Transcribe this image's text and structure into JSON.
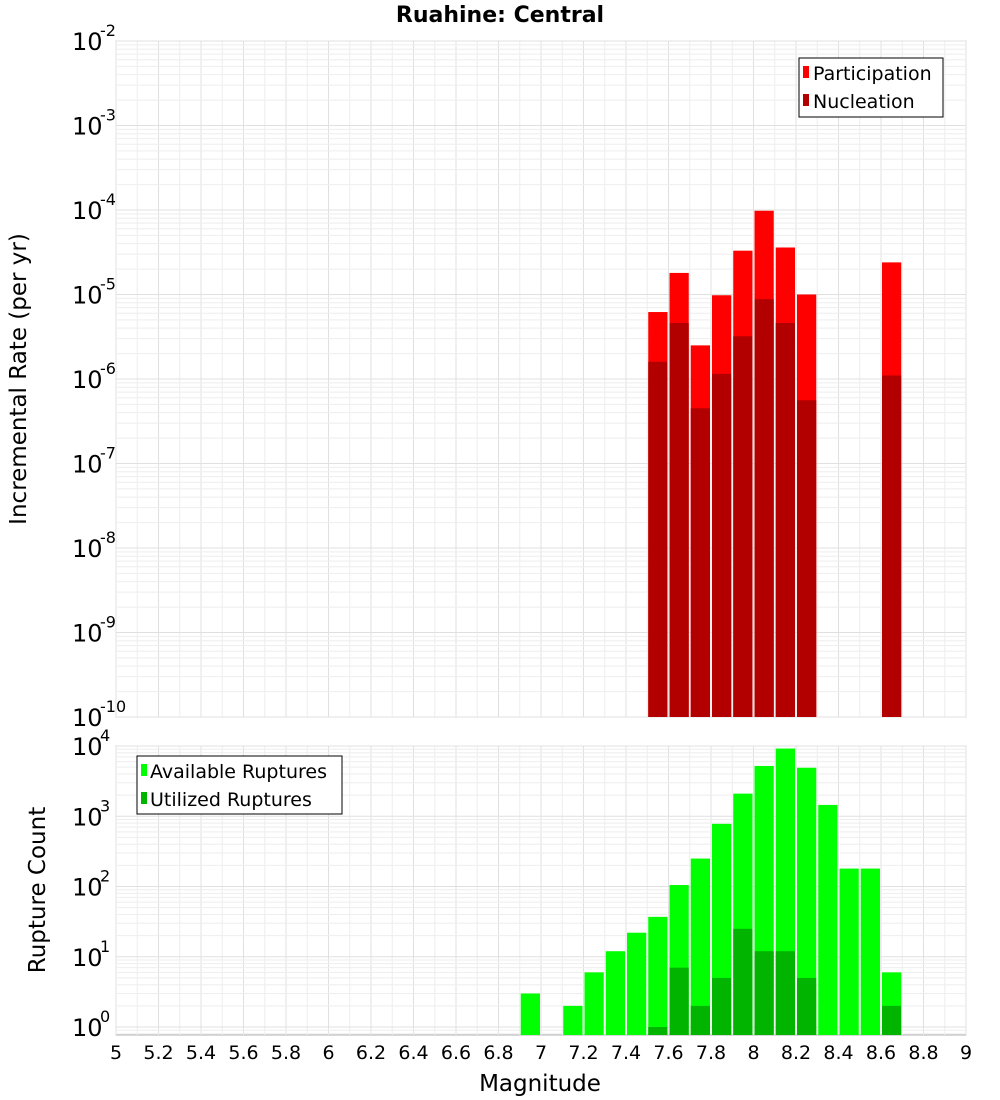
{
  "chart_data": [
    {
      "type": "bar",
      "title": "Ruahine: Central",
      "xlabel": "",
      "ylabel": "Incremental Rate (per yr)",
      "yscale": "log",
      "xlim": [
        5,
        9
      ],
      "ylim": [
        1e-10,
        0.01
      ],
      "ytick_exponents": [
        "-10",
        "-9",
        "-8",
        "-7",
        "-6",
        "-5",
        "-4",
        "-3",
        "-2"
      ],
      "ytick_base": "10",
      "legend": {
        "position": "top-right",
        "entries": [
          "Participation",
          "Nucleation"
        ]
      },
      "series": [
        {
          "name": "Participation",
          "color": "#ff0000",
          "x": [
            7.55,
            7.65,
            7.75,
            7.85,
            7.95,
            8.05,
            8.15,
            8.25,
            8.65
          ],
          "values": [
            6.2e-06,
            1.8e-05,
            2.5e-06,
            9.8e-06,
            3.3e-05,
            9.8e-05,
            3.6e-05,
            1e-05,
            2.4e-05
          ]
        },
        {
          "name": "Nucleation",
          "color": "#b20000",
          "x": [
            7.55,
            7.65,
            7.75,
            7.85,
            7.95,
            8.05,
            8.15,
            8.25,
            8.65
          ],
          "values": [
            1.6e-06,
            4.6e-06,
            4.5e-07,
            1.15e-06,
            3.2e-06,
            8.8e-06,
            4.6e-06,
            5.6e-07,
            1.1e-06
          ]
        }
      ]
    },
    {
      "type": "bar",
      "title": "",
      "xlabel": "Magnitude",
      "ylabel": "Rupture Count",
      "yscale": "log",
      "xlim": [
        5,
        9
      ],
      "ylim": [
        0.77,
        10000
      ],
      "ytick_exponents": [
        "0",
        "1",
        "2",
        "3",
        "4"
      ],
      "ytick_base": "10",
      "xticks": [
        "5",
        "5.2",
        "5.4",
        "5.6",
        "5.8",
        "6",
        "6.2",
        "6.4",
        "6.6",
        "6.8",
        "7",
        "7.2",
        "7.4",
        "7.6",
        "7.8",
        "8",
        "8.2",
        "8.4",
        "8.6",
        "8.8",
        "9"
      ],
      "legend": {
        "position": "top-left",
        "entries": [
          "Available Ruptures",
          "Utilized Ruptures"
        ]
      },
      "series": [
        {
          "name": "Available Ruptures",
          "color": "#00ff00",
          "x": [
            6.95,
            7.15,
            7.25,
            7.35,
            7.45,
            7.55,
            7.65,
            7.75,
            7.85,
            7.95,
            8.05,
            8.15,
            8.25,
            8.35,
            8.45,
            8.55,
            8.65
          ],
          "values": [
            3,
            2,
            6,
            12,
            22,
            37,
            105,
            250,
            780,
            2100,
            5200,
            9200,
            4900,
            1450,
            180,
            180,
            6
          ]
        },
        {
          "name": "Utilized Ruptures",
          "color": "#00b400",
          "x": [
            7.55,
            7.65,
            7.75,
            7.85,
            7.95,
            8.05,
            8.15,
            8.25,
            8.65
          ],
          "values": [
            1,
            7,
            2,
            5,
            25,
            12,
            12,
            5,
            2
          ]
        }
      ]
    }
  ]
}
